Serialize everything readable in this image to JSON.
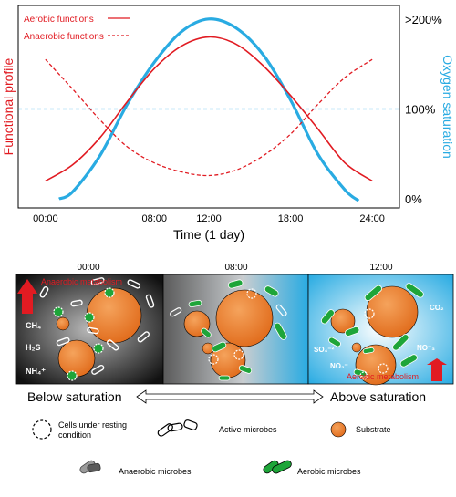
{
  "chart_data": {
    "type": "line",
    "xlabel": "Time (1 day)",
    "ylabel_left": "Functional profile",
    "ylabel_right": "Oxygen saturation",
    "x_ticks": [
      "00:00",
      "08:00",
      "12:00",
      "18:00",
      "24:00"
    ],
    "y_right_ticks": [
      ">200%",
      "100%",
      "0%"
    ],
    "xlim_hours": [
      -2,
      26
    ],
    "legend": [
      {
        "name": "Aerobic functions",
        "style": "solid",
        "color": "#e11b22"
      },
      {
        "name": "Anaerobic functions",
        "style": "dashed",
        "color": "#e11b22"
      }
    ],
    "series": [
      {
        "key": "oxygen",
        "color": "#29abe2",
        "x": [
          1,
          2,
          4,
          6,
          8,
          10,
          12,
          14,
          16,
          18,
          20,
          22,
          23
        ],
        "y": [
          0,
          8,
          48,
          105,
          152,
          186,
          200,
          190,
          160,
          110,
          50,
          10,
          -2
        ]
      },
      {
        "key": "aerobic",
        "color": "#e11b22",
        "x": [
          0,
          2,
          4,
          6,
          8,
          10,
          12,
          14,
          16,
          18,
          20,
          22,
          24
        ],
        "y": [
          20,
          38,
          68,
          108,
          145,
          170,
          180,
          172,
          148,
          115,
          78,
          40,
          20
        ]
      },
      {
        "key": "anaerobic",
        "color": "#e11b22",
        "x": [
          0,
          2,
          4,
          6,
          8,
          10,
          12,
          14,
          16,
          18,
          20,
          22,
          24
        ],
        "y": [
          155,
          122,
          88,
          58,
          40,
          30,
          26,
          32,
          48,
          72,
          105,
          135,
          155
        ]
      },
      {
        "key": "saturation",
        "color": "#29abe2",
        "x": [
          -2,
          26
        ],
        "y": [
          100,
          100
        ]
      }
    ]
  },
  "panels": [
    {
      "time": "00:00",
      "labels": [
        "Anaerobic metabolism",
        "CH₄",
        "H₂S",
        "NH₄⁺"
      ]
    },
    {
      "time": "08:00",
      "labels": []
    },
    {
      "time": "12:00",
      "labels": [
        "CO₂",
        "SO₄⁻²",
        "NO⁻₃",
        "NO₂⁻",
        "Aerobic metabolism"
      ]
    }
  ],
  "gradient": {
    "left": "Below saturation",
    "right": "Above saturation"
  },
  "key": {
    "resting": "Cells under resting condition",
    "active": "Active microbes",
    "substrate": "Substrate",
    "anaerobic": "Anaerobic microbes",
    "aerobic": "Aerobic microbes"
  },
  "colors": {
    "red": "#e11b22",
    "blue": "#29abe2",
    "orange": "#ee7e2c",
    "green": "#1ea539",
    "gray": "#777777"
  }
}
